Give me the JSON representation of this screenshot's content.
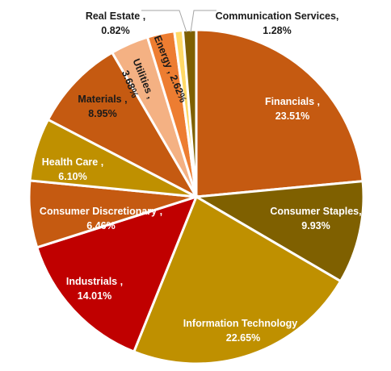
{
  "chart_data": {
    "type": "pie",
    "title": "",
    "slices": [
      {
        "name": "Financials ,",
        "value_label": "23.51%",
        "value": 23.51,
        "color": "#c55a11"
      },
      {
        "name": "Consumer Staples,",
        "value_label": "9.93%",
        "value": 9.93,
        "color": "#7f6000"
      },
      {
        "name": "Information Technology ,",
        "value_label": "22.65%",
        "value": 22.65,
        "color": "#bf9000"
      },
      {
        "name": "Industrials ,",
        "value_label": "14.01%",
        "value": 14.01,
        "color": "#c00000"
      },
      {
        "name": "Consumer Discretionary ,",
        "value_label": "6.46%",
        "value": 6.46,
        "color": "#c55a11"
      },
      {
        "name": "Health Care ,",
        "value_label": "6.10%",
        "value": 6.1,
        "color": "#bf9000"
      },
      {
        "name": "Materials ,",
        "value_label": "8.95%",
        "value": 8.95,
        "color": "#c55a11"
      },
      {
        "name": "Utilities ,",
        "value_label": "3.68%",
        "value": 3.68,
        "color": "#f4b183"
      },
      {
        "name": "Energy , 2.62%",
        "value_label": "",
        "value": 2.62,
        "color": "#ed7d31"
      },
      {
        "name": "Real Estate ,",
        "value_label": "0.82%",
        "value": 0.82,
        "color": "#ffd966"
      },
      {
        "name": "Communication Services,",
        "value_label": "1.28%",
        "value": 1.28,
        "color": "#7f6000"
      }
    ]
  }
}
